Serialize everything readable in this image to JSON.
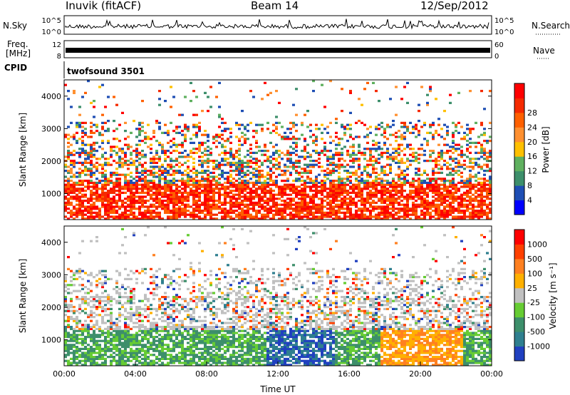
{
  "header": {
    "station": "Inuvik (fitACF)",
    "beam": "Beam 14",
    "date": "12/Sep/2012"
  },
  "panels": {
    "nsky_label": "N.Sky",
    "nsearch_label": "N.Search",
    "freq_label_1": "Freq.",
    "freq_label_2": "[MHz]",
    "cpid_label": "CPID",
    "nave_label": "Nave",
    "cpid_value": "twofsound 3501",
    "nsky_ticks": [
      "10^5",
      "10^0"
    ],
    "nsearch_ticks": [
      "10^5",
      "10^0"
    ],
    "freq_ticks": [
      "12",
      "8"
    ],
    "nave_ticks": [
      "60",
      "0"
    ]
  },
  "chart_data": [
    {
      "type": "heatmap",
      "name": "power",
      "xlabel": "",
      "ylabel": "Slant Range [km]",
      "ylim": [
        200,
        4500
      ],
      "yticks": [
        "1000",
        "2000",
        "3000",
        "4000"
      ],
      "colorbar": {
        "label": "Power [dB]",
        "ticks": [
          "4",
          "8",
          "12",
          "16",
          "20",
          "24",
          "28"
        ],
        "colors": [
          "#0000ff",
          "#1e4eb4",
          "#3d8f6b",
          "#5fb05f",
          "#ffc000",
          "#ff9030",
          "#ff6000",
          "#f52a00",
          "#ff0000"
        ]
      }
    },
    {
      "type": "heatmap",
      "name": "velocity",
      "xlabel": "Time UT",
      "ylabel": "Slant Range [km]",
      "ylim": [
        200,
        4500
      ],
      "yticks": [
        "1000",
        "2000",
        "3000",
        "4000"
      ],
      "xticks": [
        "00:00",
        "04:00",
        "08:00",
        "12:00",
        "16:00",
        "20:00",
        "00:00"
      ],
      "colorbar": {
        "label": "Velocity [m s⁻¹]",
        "ticks": [
          "1000",
          "500",
          "100",
          "25",
          "-25",
          "-100",
          "-500",
          "-1000"
        ],
        "colors": [
          "#2040c0",
          "#2f7f8f",
          "#3d8f6b",
          "#66cc33",
          "#c0c0c0",
          "#ffb000",
          "#ff8020",
          "#ff4000",
          "#ff0000"
        ]
      }
    }
  ]
}
